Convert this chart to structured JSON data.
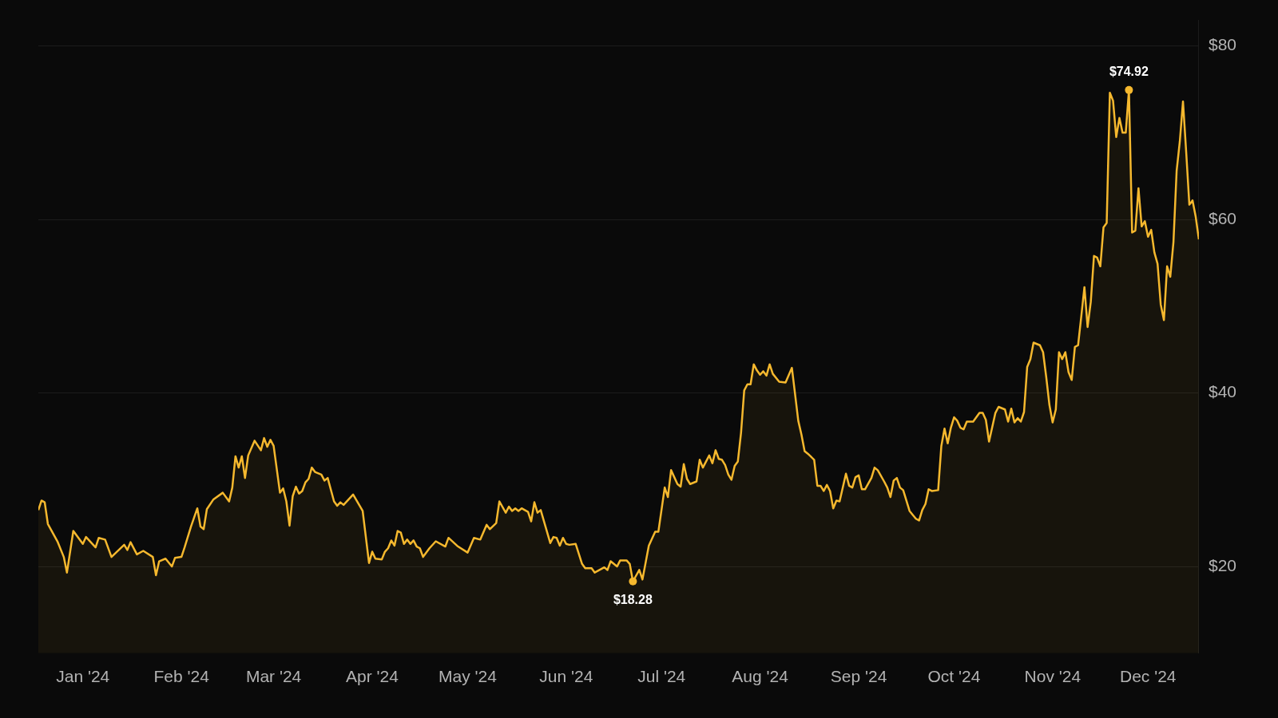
{
  "chart_data": {
    "type": "area",
    "x": [
      "2023-12-18",
      "2023-12-19",
      "2023-12-20",
      "2023-12-21",
      "2023-12-24",
      "2023-12-26",
      "2023-12-27",
      "2023-12-29",
      "2024-01-01",
      "2024-01-02",
      "2024-01-05",
      "2024-01-06",
      "2024-01-08",
      "2024-01-10",
      "2024-01-14",
      "2024-01-15",
      "2024-01-16",
      "2024-01-18",
      "2024-01-20",
      "2024-01-23",
      "2024-01-24",
      "2024-01-25",
      "2024-01-27",
      "2024-01-29",
      "2024-01-30",
      "2024-02-01",
      "2024-02-02",
      "2024-02-04",
      "2024-02-06",
      "2024-02-07",
      "2024-02-08",
      "2024-02-09",
      "2024-02-11",
      "2024-02-14",
      "2024-02-16",
      "2024-02-17",
      "2024-02-18",
      "2024-02-19",
      "2024-02-20",
      "2024-02-21",
      "2024-02-22",
      "2024-02-24",
      "2024-02-26",
      "2024-02-27",
      "2024-02-28",
      "2024-02-29",
      "2024-03-01",
      "2024-03-03",
      "2024-03-04",
      "2024-03-05",
      "2024-03-06",
      "2024-03-07",
      "2024-03-08",
      "2024-03-09",
      "2024-03-10",
      "2024-03-11",
      "2024-03-12",
      "2024-03-13",
      "2024-03-14",
      "2024-03-16",
      "2024-03-17",
      "2024-03-18",
      "2024-03-20",
      "2024-03-21",
      "2024-03-22",
      "2024-03-23",
      "2024-03-26",
      "2024-03-29",
      "2024-03-31",
      "2024-04-01",
      "2024-04-02",
      "2024-04-04",
      "2024-04-05",
      "2024-04-06",
      "2024-04-07",
      "2024-04-08",
      "2024-04-09",
      "2024-04-10",
      "2024-04-11",
      "2024-04-12",
      "2024-04-13",
      "2024-04-14",
      "2024-04-15",
      "2024-04-16",
      "2024-04-17",
      "2024-04-19",
      "2024-04-21",
      "2024-04-24",
      "2024-04-25",
      "2024-04-28",
      "2024-05-01",
      "2024-05-03",
      "2024-05-05",
      "2024-05-07",
      "2024-05-08",
      "2024-05-10",
      "2024-05-11",
      "2024-05-13",
      "2024-05-14",
      "2024-05-15",
      "2024-05-16",
      "2024-05-17",
      "2024-05-18",
      "2024-05-20",
      "2024-05-21",
      "2024-05-22",
      "2024-05-23",
      "2024-05-24",
      "2024-05-27",
      "2024-05-28",
      "2024-05-29",
      "2024-05-30",
      "2024-05-31",
      "2024-06-01",
      "2024-06-02",
      "2024-06-04",
      "2024-06-06",
      "2024-06-07",
      "2024-06-09",
      "2024-06-10",
      "2024-06-13",
      "2024-06-14",
      "2024-06-15",
      "2024-06-17",
      "2024-06-18",
      "2024-06-20",
      "2024-06-21",
      "2024-06-22",
      "2024-06-24",
      "2024-06-25",
      "2024-06-27",
      "2024-06-29",
      "2024-06-30",
      "2024-07-02",
      "2024-07-03",
      "2024-07-04",
      "2024-07-06",
      "2024-07-07",
      "2024-07-08",
      "2024-07-09",
      "2024-07-10",
      "2024-07-12",
      "2024-07-13",
      "2024-07-14",
      "2024-07-16",
      "2024-07-17",
      "2024-07-18",
      "2024-07-19",
      "2024-07-20",
      "2024-07-21",
      "2024-07-22",
      "2024-07-23",
      "2024-07-24",
      "2024-07-25",
      "2024-07-26",
      "2024-07-27",
      "2024-07-28",
      "2024-07-29",
      "2024-07-30",
      "2024-07-31",
      "2024-08-01",
      "2024-08-02",
      "2024-08-03",
      "2024-08-04",
      "2024-08-05",
      "2024-08-07",
      "2024-08-09",
      "2024-08-11",
      "2024-08-13",
      "2024-08-14",
      "2024-08-15",
      "2024-08-16",
      "2024-08-18",
      "2024-08-19",
      "2024-08-20",
      "2024-08-21",
      "2024-08-22",
      "2024-08-23",
      "2024-08-24",
      "2024-08-25",
      "2024-08-26",
      "2024-08-28",
      "2024-08-29",
      "2024-08-30",
      "2024-08-31",
      "2024-09-01",
      "2024-09-02",
      "2024-09-03",
      "2024-09-05",
      "2024-09-06",
      "2024-09-07",
      "2024-09-09",
      "2024-09-10",
      "2024-09-11",
      "2024-09-12",
      "2024-09-13",
      "2024-09-14",
      "2024-09-15",
      "2024-09-17",
      "2024-09-19",
      "2024-09-20",
      "2024-09-21",
      "2024-09-22",
      "2024-09-23",
      "2024-09-24",
      "2024-09-26",
      "2024-09-27",
      "2024-09-28",
      "2024-09-29",
      "2024-09-30",
      "2024-10-01",
      "2024-10-02",
      "2024-10-03",
      "2024-10-04",
      "2024-10-05",
      "2024-10-07",
      "2024-10-09",
      "2024-10-10",
      "2024-10-11",
      "2024-10-12",
      "2024-10-14",
      "2024-10-15",
      "2024-10-17",
      "2024-10-18",
      "2024-10-19",
      "2024-10-20",
      "2024-10-21",
      "2024-10-22",
      "2024-10-23",
      "2024-10-24",
      "2024-10-25",
      "2024-10-26",
      "2024-10-28",
      "2024-10-29",
      "2024-10-30",
      "2024-10-31",
      "2024-11-01",
      "2024-11-02",
      "2024-11-03",
      "2024-11-04",
      "2024-11-05",
      "2024-11-06",
      "2024-11-07",
      "2024-11-08",
      "2024-11-09",
      "2024-11-10",
      "2024-11-11",
      "2024-11-12",
      "2024-11-13",
      "2024-11-14",
      "2024-11-15",
      "2024-11-16",
      "2024-11-17",
      "2024-11-18",
      "2024-11-19",
      "2024-11-20",
      "2024-11-21",
      "2024-11-22",
      "2024-11-23",
      "2024-11-24",
      "2024-11-25",
      "2024-11-26",
      "2024-11-27",
      "2024-11-28",
      "2024-11-29",
      "2024-11-30",
      "2024-12-01",
      "2024-12-02",
      "2024-12-03",
      "2024-12-04",
      "2024-12-05",
      "2024-12-06",
      "2024-12-07",
      "2024-12-08",
      "2024-12-09",
      "2024-12-10",
      "2024-12-11",
      "2024-12-12",
      "2024-12-13",
      "2024-12-14",
      "2024-12-15",
      "2024-12-16",
      "2024-12-17"
    ],
    "series": [
      {
        "color": "#f5b82e",
        "values": [
          26.5,
          27.6,
          27.4,
          24.9,
          22.9,
          21.1,
          19.3,
          24.1,
          22.6,
          23.4,
          22.2,
          23.3,
          23.1,
          21.1,
          22.5,
          21.9,
          22.8,
          21.4,
          21.8,
          21.1,
          19.0,
          20.6,
          20.9,
          20.0,
          21.0,
          21.1,
          22.2,
          24.6,
          26.7,
          24.6,
          24.3,
          26.6,
          27.7,
          28.5,
          27.5,
          29.1,
          32.7,
          31.4,
          32.7,
          30.2,
          32.8,
          34.5,
          33.4,
          34.8,
          33.8,
          34.6,
          33.9,
          28.5,
          29.0,
          27.5,
          24.7,
          28.1,
          29.2,
          28.4,
          28.7,
          29.7,
          30.1,
          31.4,
          30.9,
          30.6,
          29.9,
          30.2,
          27.5,
          27.0,
          27.4,
          27.1,
          28.3,
          26.4,
          20.4,
          21.7,
          20.9,
          20.8,
          21.7,
          22.1,
          23.0,
          22.4,
          24.1,
          23.9,
          22.6,
          23.1,
          22.6,
          23.0,
          22.3,
          22.1,
          21.1,
          22.1,
          22.9,
          22.3,
          23.3,
          22.3,
          21.6,
          23.3,
          23.1,
          24.8,
          24.3,
          25.0,
          27.5,
          26.2,
          26.9,
          26.4,
          26.7,
          26.4,
          26.7,
          26.3,
          25.2,
          27.4,
          26.2,
          26.5,
          22.7,
          23.4,
          23.3,
          22.4,
          23.3,
          22.6,
          22.5,
          22.6,
          20.3,
          19.8,
          19.8,
          19.3,
          19.9,
          19.6,
          20.6,
          20.0,
          20.7,
          20.7,
          20.3,
          18.28,
          19.6,
          18.5,
          22.4,
          24.0,
          24.0,
          29.1,
          28.0,
          31.1,
          29.5,
          29.2,
          31.8,
          30.1,
          29.5,
          29.8,
          32.3,
          31.4,
          32.8,
          31.9,
          33.4,
          32.4,
          32.3,
          31.7,
          30.6,
          30.0,
          31.6,
          32.1,
          35.4,
          40.3,
          41.0,
          41.0,
          43.3,
          42.6,
          42.1,
          42.5,
          42.0,
          43.3,
          42.2,
          41.3,
          41.2,
          42.9,
          36.8,
          35.2,
          33.3,
          33.0,
          32.3,
          29.3,
          29.3,
          28.7,
          29.4,
          28.7,
          26.7,
          27.6,
          27.5,
          30.7,
          29.3,
          29.1,
          30.3,
          30.5,
          28.9,
          28.9,
          30.2,
          31.4,
          31.1,
          29.8,
          29.1,
          28.0,
          29.9,
          30.2,
          29.1,
          28.8,
          26.4,
          25.5,
          25.3,
          26.5,
          27.2,
          28.9,
          28.7,
          28.8,
          33.9,
          35.9,
          34.2,
          36.0,
          37.2,
          36.8,
          36.0,
          35.8,
          36.7,
          36.7,
          37.7,
          37.7,
          36.9,
          34.4,
          37.7,
          38.4,
          38.1,
          36.7,
          38.2,
          36.6,
          37.1,
          36.7,
          37.8,
          43.0,
          43.9,
          45.8,
          45.5,
          44.7,
          41.8,
          38.6,
          36.6,
          38.1,
          44.7,
          43.9,
          44.7,
          42.4,
          41.5,
          45.3,
          45.5,
          48.8,
          52.2,
          47.6,
          50.5,
          55.8,
          55.6,
          54.6,
          59.1,
          59.6,
          74.6,
          73.7,
          69.5,
          71.7,
          70.0,
          70.0,
          74.92,
          58.5,
          58.7,
          63.6,
          59.2,
          59.8,
          58.0,
          58.8,
          56.2,
          54.9,
          50.2,
          48.4,
          54.6,
          53.4,
          57.4,
          65.6,
          69.0,
          73.6,
          67.8,
          61.7,
          62.2,
          60.3,
          57.7
        ]
      }
    ],
    "xlim": [
      "2023-12-18",
      "2024-12-17"
    ],
    "xticks": [
      {
        "value": "2024-01-01",
        "label": "Jan '24"
      },
      {
        "value": "2024-02-01",
        "label": "Feb '24"
      },
      {
        "value": "2024-03-01",
        "label": "Mar '24"
      },
      {
        "value": "2024-04-01",
        "label": "Apr '24"
      },
      {
        "value": "2024-05-01",
        "label": "May '24"
      },
      {
        "value": "2024-06-01",
        "label": "Jun '24"
      },
      {
        "value": "2024-07-01",
        "label": "Jul '24"
      },
      {
        "value": "2024-08-01",
        "label": "Aug '24"
      },
      {
        "value": "2024-09-01",
        "label": "Sep '24"
      },
      {
        "value": "2024-10-01",
        "label": "Oct '24"
      },
      {
        "value": "2024-11-01",
        "label": "Nov '24"
      },
      {
        "value": "2024-12-01",
        "label": "Dec '24"
      }
    ],
    "ylim": [
      10,
      83
    ],
    "yticks": [
      {
        "value": 20,
        "label": "$20"
      },
      {
        "value": 40,
        "label": "$40"
      },
      {
        "value": 60,
        "label": "$60"
      },
      {
        "value": 80,
        "label": "$80"
      }
    ],
    "grid": "y",
    "annotations": [
      {
        "text": "$18.28",
        "x": "2024-06-22",
        "y": 18.28
      },
      {
        "text": "$74.92",
        "x": "2024-11-25",
        "y": 74.92
      }
    ]
  }
}
